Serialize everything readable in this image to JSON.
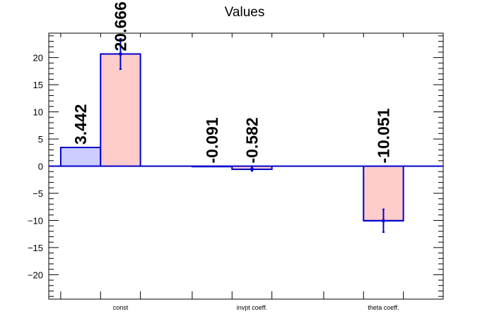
{
  "chart_data": {
    "type": "bar",
    "title": "Values",
    "xlabel": "",
    "ylabel": "",
    "categories": [
      "const",
      "invpt coeff.",
      "theta coeff."
    ],
    "ylim": [
      -24.5,
      24.5
    ],
    "yticks": [
      -20,
      -15,
      -10,
      -5,
      0,
      5,
      10,
      15,
      20
    ],
    "grid": false,
    "legend": "none",
    "series": [
      {
        "values": [
          3.442,
          -0.091,
          null
        ],
        "labels": [
          "3.442",
          "-0.091",
          null
        ],
        "errors": [
          null,
          null,
          null
        ],
        "fill": "#ccccff",
        "stroke": "#0000cc"
      },
      {
        "values": [
          20.666,
          -0.582,
          -10.051
        ],
        "labels": [
          "20.666",
          "-0.582",
          "-10.051"
        ],
        "errors": [
          2.8,
          0.3,
          2.1
        ],
        "fill": "#ffcccc",
        "stroke": "#0000cc"
      }
    ]
  }
}
